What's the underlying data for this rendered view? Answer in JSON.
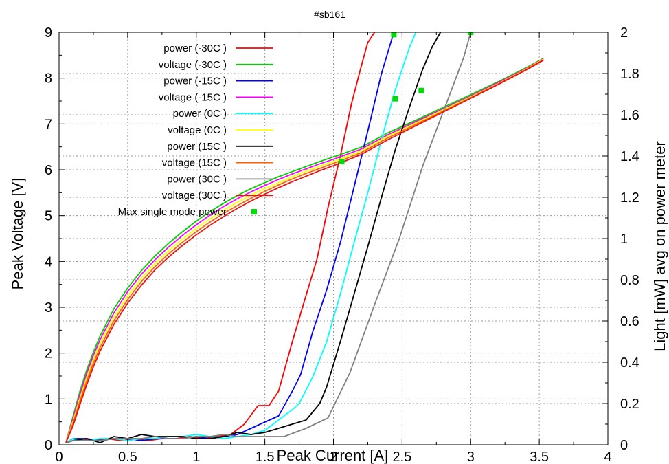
{
  "chart_data": {
    "type": "line",
    "title": "#sb161",
    "xlabel": "Peak Current [A]",
    "ylabel": "Peak Voltage [V]",
    "y2label": "Light [mW] avg on power meter",
    "xlim": [
      0,
      4
    ],
    "ylim": [
      0,
      9
    ],
    "y2lim": [
      0,
      2
    ],
    "x_ticks": [
      "0",
      "0.5",
      "1",
      "1.5",
      "2",
      "2.5",
      "3",
      "3.5",
      "4"
    ],
    "y_ticks": [
      "0",
      "1",
      "2",
      "3",
      "4",
      "5",
      "6",
      "7",
      "8",
      "9"
    ],
    "y2_ticks": [
      "0",
      "0.2",
      "0.4",
      "0.6",
      "0.8",
      "1",
      "1.2",
      "1.4",
      "1.6",
      "1.8",
      "2"
    ],
    "grid": true,
    "legend_position": "top-left",
    "series": [
      {
        "name": "power (-30C )",
        "axis": "y2",
        "color": "#ff0000",
        "x": [
          0.05,
          0.15,
          0.25,
          0.35,
          0.45,
          0.55,
          0.65,
          0.75,
          0.85,
          0.95,
          1.05,
          1.15,
          1.25,
          1.35,
          1.45,
          1.53,
          1.6,
          1.7,
          1.78,
          1.88,
          1.96,
          2.05,
          2.13,
          2.2,
          2.25,
          2.3
        ],
        "y": [
          0.01,
          0.03,
          0.02,
          0.03,
          0.02,
          0.03,
          0.02,
          0.03,
          0.03,
          0.04,
          0.03,
          0.04,
          0.05,
          0.1,
          0.19,
          0.19,
          0.26,
          0.5,
          0.68,
          0.9,
          1.15,
          1.4,
          1.65,
          1.83,
          1.95,
          2.0
        ]
      },
      {
        "name": "voltage (-30C )",
        "axis": "y",
        "color": "#00d000",
        "x": [
          0.05,
          0.1,
          0.15,
          0.2,
          0.25,
          0.3,
          0.4,
          0.5,
          0.6,
          0.7,
          0.8,
          0.9,
          1.0,
          1.1,
          1.2,
          1.3,
          1.4,
          1.5,
          1.6,
          1.7,
          1.8,
          1.9,
          2.0,
          2.2,
          2.4,
          2.6,
          2.8,
          3.0,
          3.2,
          3.4,
          3.53
        ],
        "y": [
          0.05,
          0.6,
          1.15,
          1.62,
          2.02,
          2.38,
          2.97,
          3.42,
          3.8,
          4.12,
          4.4,
          4.65,
          4.88,
          5.09,
          5.27,
          5.44,
          5.59,
          5.72,
          5.85,
          5.96,
          6.07,
          6.18,
          6.28,
          6.49,
          6.81,
          7.08,
          7.36,
          7.64,
          7.92,
          8.22,
          8.43
        ]
      },
      {
        "name": "power (-15C )",
        "axis": "y2",
        "color": "#0000ff",
        "x": [
          0.05,
          0.1,
          0.2,
          0.3,
          0.4,
          0.5,
          0.6,
          0.7,
          0.8,
          0.9,
          1.0,
          1.1,
          1.2,
          1.3,
          1.4,
          1.5,
          1.6,
          1.7,
          1.76,
          1.85,
          1.95,
          2.05,
          2.15,
          2.25,
          2.35,
          2.44
        ],
        "y": [
          0.01,
          0.03,
          0.03,
          0.02,
          0.03,
          0.03,
          0.02,
          0.03,
          0.03,
          0.03,
          0.04,
          0.03,
          0.04,
          0.05,
          0.08,
          0.11,
          0.14,
          0.26,
          0.34,
          0.55,
          0.75,
          0.98,
          1.25,
          1.52,
          1.8,
          2.0
        ]
      },
      {
        "name": "voltage (-15C )",
        "axis": "y",
        "color": "#ff00ff",
        "x": [
          0.05,
          0.1,
          0.15,
          0.2,
          0.25,
          0.3,
          0.4,
          0.5,
          0.6,
          0.7,
          0.8,
          0.9,
          1.0,
          1.1,
          1.2,
          1.3,
          1.4,
          1.5,
          1.6,
          1.7,
          1.8,
          1.9,
          2.0,
          2.2,
          2.4,
          2.6,
          2.8,
          3.0,
          3.2,
          3.4,
          3.53
        ],
        "y": [
          0.05,
          0.55,
          1.08,
          1.55,
          1.95,
          2.3,
          2.88,
          3.34,
          3.72,
          4.04,
          4.32,
          4.57,
          4.8,
          5.01,
          5.2,
          5.37,
          5.52,
          5.66,
          5.79,
          5.91,
          6.02,
          6.13,
          6.23,
          6.45,
          6.77,
          7.05,
          7.33,
          7.61,
          7.9,
          8.2,
          8.42
        ]
      },
      {
        "name": "power (0C )",
        "axis": "y2",
        "color": "#00ffff",
        "x": [
          0.05,
          0.1,
          0.2,
          0.3,
          0.4,
          0.5,
          0.6,
          0.7,
          0.8,
          0.9,
          1.0,
          1.1,
          1.2,
          1.3,
          1.4,
          1.5,
          1.6,
          1.7,
          1.75,
          1.85,
          1.95,
          2.05,
          2.15,
          2.25,
          2.35,
          2.45,
          2.55,
          2.6
        ],
        "y": [
          0.01,
          0.03,
          0.02,
          0.03,
          0.03,
          0.02,
          0.03,
          0.03,
          0.04,
          0.04,
          0.05,
          0.04,
          0.03,
          0.04,
          0.05,
          0.07,
          0.12,
          0.17,
          0.2,
          0.33,
          0.5,
          0.73,
          0.98,
          1.22,
          1.48,
          1.72,
          1.92,
          2.0
        ]
      },
      {
        "name": "voltage (0C )",
        "axis": "y",
        "color": "#ffff00",
        "x": [
          0.05,
          0.1,
          0.15,
          0.2,
          0.25,
          0.3,
          0.4,
          0.5,
          0.6,
          0.7,
          0.8,
          0.9,
          1.0,
          1.1,
          1.2,
          1.3,
          1.4,
          1.5,
          1.6,
          1.7,
          1.8,
          1.9,
          2.0,
          2.2,
          2.4,
          2.6,
          2.8,
          3.0,
          3.2,
          3.4,
          3.53
        ],
        "y": [
          0.05,
          0.5,
          1.0,
          1.46,
          1.86,
          2.21,
          2.79,
          3.25,
          3.63,
          3.96,
          4.24,
          4.49,
          4.72,
          4.93,
          5.12,
          5.29,
          5.45,
          5.59,
          5.72,
          5.85,
          5.97,
          6.08,
          6.18,
          6.41,
          6.74,
          7.02,
          7.31,
          7.59,
          7.88,
          8.19,
          8.41
        ]
      },
      {
        "name": "power (15C )",
        "axis": "y2",
        "color": "#000000",
        "x": [
          0.05,
          0.1,
          0.2,
          0.3,
          0.4,
          0.5,
          0.6,
          0.7,
          0.8,
          0.9,
          1.0,
          1.1,
          1.2,
          1.3,
          1.4,
          1.5,
          1.6,
          1.7,
          1.8,
          1.9,
          1.95,
          2.05,
          2.15,
          2.25,
          2.35,
          2.45,
          2.55,
          2.65,
          2.72,
          2.78
        ],
        "y": [
          0.01,
          0.02,
          0.03,
          0.01,
          0.04,
          0.03,
          0.05,
          0.04,
          0.04,
          0.04,
          0.03,
          0.03,
          0.04,
          0.06,
          0.05,
          0.06,
          0.08,
          0.1,
          0.12,
          0.2,
          0.28,
          0.5,
          0.73,
          0.96,
          1.2,
          1.43,
          1.63,
          1.82,
          1.93,
          2.0
        ]
      },
      {
        "name": "voltage (15C )",
        "axis": "y",
        "color": "#ff6000",
        "x": [
          0.05,
          0.1,
          0.15,
          0.2,
          0.25,
          0.3,
          0.4,
          0.5,
          0.6,
          0.7,
          0.8,
          0.9,
          1.0,
          1.1,
          1.2,
          1.3,
          1.4,
          1.5,
          1.6,
          1.7,
          1.8,
          1.9,
          2.0,
          2.2,
          2.4,
          2.6,
          2.8,
          3.0,
          3.2,
          3.4,
          3.53
        ],
        "y": [
          0.05,
          0.45,
          0.93,
          1.38,
          1.78,
          2.13,
          2.71,
          3.17,
          3.56,
          3.89,
          4.17,
          4.42,
          4.65,
          4.86,
          5.05,
          5.22,
          5.38,
          5.53,
          5.67,
          5.8,
          5.92,
          6.03,
          6.14,
          6.37,
          6.7,
          6.99,
          7.28,
          7.57,
          7.87,
          8.18,
          8.4
        ]
      },
      {
        "name": "power (30C )",
        "axis": "y2",
        "color": "#808080",
        "x": [
          0.05,
          0.1,
          0.2,
          0.3,
          0.4,
          0.5,
          0.6,
          0.7,
          0.8,
          0.9,
          1.0,
          1.1,
          1.2,
          1.3,
          1.4,
          1.5,
          1.64,
          1.8,
          1.96,
          2.12,
          2.3,
          2.48,
          2.65,
          2.82,
          2.95,
          3.0
        ],
        "y": [
          0.01,
          0.02,
          0.02,
          0.02,
          0.03,
          0.03,
          0.03,
          0.04,
          0.03,
          0.03,
          0.04,
          0.04,
          0.05,
          0.04,
          0.04,
          0.04,
          0.04,
          0.08,
          0.13,
          0.35,
          0.68,
          1.0,
          1.35,
          1.65,
          1.88,
          2.0
        ]
      },
      {
        "name": "voltage (30C )",
        "axis": "y",
        "color": "#ee1111",
        "x": [
          0.05,
          0.1,
          0.15,
          0.2,
          0.25,
          0.3,
          0.4,
          0.5,
          0.6,
          0.7,
          0.8,
          0.9,
          1.0,
          1.1,
          1.2,
          1.3,
          1.4,
          1.5,
          1.6,
          1.7,
          1.8,
          1.9,
          2.0,
          2.2,
          2.4,
          2.6,
          2.8,
          3.0,
          3.2,
          3.4,
          3.53
        ],
        "y": [
          0.05,
          0.4,
          0.86,
          1.3,
          1.7,
          2.05,
          2.63,
          3.09,
          3.48,
          3.82,
          4.1,
          4.35,
          4.58,
          4.79,
          4.98,
          5.16,
          5.32,
          5.47,
          5.61,
          5.74,
          5.86,
          5.98,
          6.09,
          6.33,
          6.66,
          6.96,
          7.26,
          7.56,
          7.86,
          8.17,
          8.39
        ]
      },
      {
        "name": "Max single mode power",
        "axis": "y",
        "type": "scatter",
        "color": "#00dd00",
        "x": [
          2.06,
          2.44,
          2.45,
          2.64,
          3.0
        ],
        "y": [
          6.18,
          8.95,
          7.55,
          7.73,
          9.0
        ]
      }
    ]
  }
}
